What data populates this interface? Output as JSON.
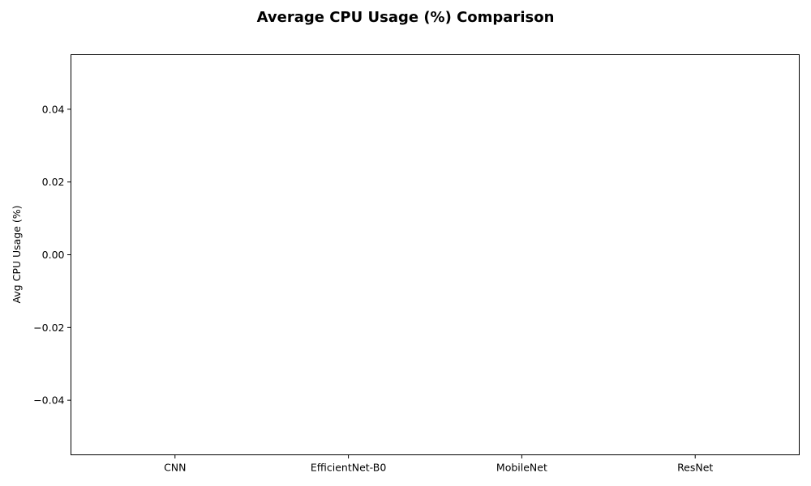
{
  "chart_data": {
    "type": "bar",
    "title": "Average CPU Usage (%) Comparison",
    "xlabel": "",
    "ylabel": "Avg CPU Usage (%)",
    "categories": [
      "CNN",
      "EfficientNet-B0",
      "MobileNet",
      "ResNet"
    ],
    "values": [
      0,
      0,
      0,
      0
    ],
    "ylim": [
      -0.055,
      0.055
    ],
    "yticks": [
      -0.04,
      -0.02,
      0.0,
      0.02,
      0.04
    ],
    "ytick_labels": [
      "−0.04",
      "−0.02",
      "0.00",
      "0.02",
      "0.04"
    ],
    "grid": false,
    "legend": null,
    "colors": {
      "axis": "#000000",
      "background": "#ffffff"
    }
  }
}
